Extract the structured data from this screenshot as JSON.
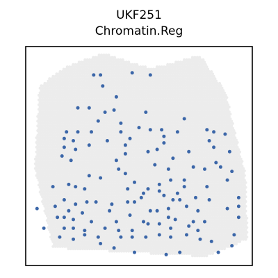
{
  "title": {
    "line1": "UKF251",
    "line2": "Chromatin.Reg"
  },
  "colors": {
    "tissue": "#ececec",
    "highlight": "#3b66a8",
    "frame": "#000000",
    "background": "#ffffff"
  },
  "chart_data": {
    "type": "scatter",
    "title": "UKF251 Chromatin.Reg",
    "xlabel": "",
    "ylabel": "",
    "axes_visible": false,
    "grid": false,
    "legend": "none",
    "xlim": [
      0,
      100
    ],
    "ylim": [
      0,
      100
    ],
    "tissue_outline": [
      [
        12,
        8
      ],
      [
        80,
        4
      ],
      [
        98,
        12
      ],
      [
        97,
        42
      ],
      [
        88,
        80
      ],
      [
        77,
        96
      ],
      [
        55,
        90
      ],
      [
        34,
        97
      ],
      [
        18,
        91
      ],
      [
        6,
        82
      ],
      [
        4,
        44
      ]
    ],
    "series": [
      {
        "name": "",
        "points": [
          [
            30,
            87
          ],
          [
            33,
            87
          ],
          [
            47,
            88
          ],
          [
            55,
            87
          ],
          [
            34,
            82
          ],
          [
            40,
            77
          ],
          [
            23,
            72
          ],
          [
            28,
            72
          ],
          [
            35,
            70
          ],
          [
            39,
            71
          ],
          [
            53,
            70
          ],
          [
            32,
            66
          ],
          [
            42,
            65
          ],
          [
            70,
            67
          ],
          [
            50,
            63
          ],
          [
            60,
            62
          ],
          [
            18,
            61
          ],
          [
            23,
            61
          ],
          [
            29,
            61
          ],
          [
            42,
            61
          ],
          [
            55,
            62
          ],
          [
            83,
            61
          ],
          [
            17,
            58
          ],
          [
            21,
            57
          ],
          [
            36,
            57
          ],
          [
            46,
            58
          ],
          [
            61,
            59
          ],
          [
            67,
            61
          ],
          [
            80,
            62
          ],
          [
            88,
            60
          ],
          [
            17,
            54
          ],
          [
            22,
            53
          ],
          [
            28,
            55
          ],
          [
            44,
            55
          ],
          [
            54,
            52
          ],
          [
            58,
            53
          ],
          [
            61,
            56
          ],
          [
            81,
            57
          ],
          [
            83,
            54
          ],
          [
            16,
            50
          ],
          [
            20,
            48
          ],
          [
            40,
            48
          ],
          [
            44,
            51
          ],
          [
            65,
            49
          ],
          [
            72,
            52
          ],
          [
            90,
            52
          ],
          [
            41,
            44
          ],
          [
            44,
            42
          ],
          [
            57,
            46
          ],
          [
            63,
            44
          ],
          [
            74,
            45
          ],
          [
            79,
            44
          ],
          [
            84,
            47
          ],
          [
            86,
            45
          ],
          [
            91,
            43
          ],
          [
            28,
            41
          ],
          [
            33,
            40
          ],
          [
            48,
            38
          ],
          [
            59,
            37
          ],
          [
            64,
            39
          ],
          [
            70,
            39
          ],
          [
            89,
            39
          ],
          [
            12,
            36
          ],
          [
            19,
            37
          ],
          [
            22,
            36
          ],
          [
            26,
            35
          ],
          [
            45,
            35
          ],
          [
            52,
            33
          ],
          [
            54,
            35
          ],
          [
            59,
            34
          ],
          [
            67,
            33
          ],
          [
            70,
            36
          ],
          [
            80,
            36
          ],
          [
            94,
            31
          ],
          [
            17,
            30
          ],
          [
            22,
            28
          ],
          [
            27,
            29
          ],
          [
            31,
            29
          ],
          [
            48,
            29
          ],
          [
            51,
            31
          ],
          [
            61,
            32
          ],
          [
            65,
            30
          ],
          [
            68,
            30
          ],
          [
            75,
            31
          ],
          [
            13,
            27
          ],
          [
            38,
            28
          ],
          [
            45,
            29
          ],
          [
            19,
            25
          ],
          [
            25,
            24
          ],
          [
            37,
            25
          ],
          [
            55,
            25
          ],
          [
            58,
            25
          ],
          [
            63,
            26
          ],
          [
            71,
            27
          ],
          [
            76,
            25
          ],
          [
            81,
            30
          ],
          [
            89,
            26
          ],
          [
            5,
            26
          ],
          [
            14,
            22
          ],
          [
            17,
            22
          ],
          [
            21,
            21
          ],
          [
            29,
            20
          ],
          [
            40,
            20
          ],
          [
            46,
            23
          ],
          [
            52,
            20
          ],
          [
            63,
            22
          ],
          [
            66,
            21
          ],
          [
            74,
            20
          ],
          [
            79,
            20
          ],
          [
            94,
            22
          ],
          [
            8,
            17
          ],
          [
            17,
            17
          ],
          [
            21,
            17
          ],
          [
            26,
            16
          ],
          [
            35,
            17
          ],
          [
            41,
            16
          ],
          [
            47,
            16
          ],
          [
            54,
            19
          ],
          [
            59,
            19
          ],
          [
            64,
            17
          ],
          [
            72,
            18
          ],
          [
            76,
            16
          ],
          [
            92,
            14
          ],
          [
            15,
            13
          ],
          [
            21,
            12
          ],
          [
            26,
            14
          ],
          [
            32,
            13
          ],
          [
            42,
            13
          ],
          [
            47,
            13
          ],
          [
            53,
            13
          ],
          [
            59,
            14
          ],
          [
            64,
            13
          ],
          [
            71,
            14
          ],
          [
            77,
            12
          ],
          [
            82,
            11
          ],
          [
            33,
            10
          ],
          [
            39,
            8
          ],
          [
            48,
            6
          ],
          [
            62,
            5
          ],
          [
            68,
            6
          ],
          [
            85,
            6
          ],
          [
            91,
            9
          ],
          [
            94,
            27
          ]
        ]
      }
    ]
  }
}
